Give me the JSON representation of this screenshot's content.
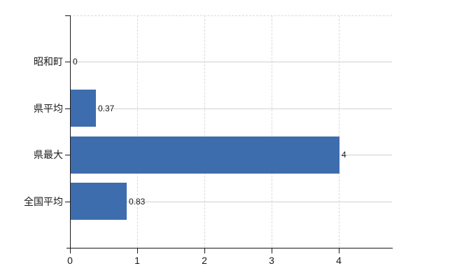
{
  "chart_data": {
    "type": "bar",
    "orientation": "horizontal",
    "title": "",
    "xlabel": "",
    "ylabel": "",
    "categories": [
      "昭和町",
      "県平均",
      "県最大",
      "全国平均"
    ],
    "values": [
      0,
      0.37,
      4,
      0.83
    ],
    "data_labels": [
      "0",
      "0.37",
      "4",
      "0.83"
    ],
    "xticks": [
      "0",
      "1",
      "2",
      "3",
      "4"
    ],
    "xlim": [
      0,
      4.79
    ],
    "grid": "on",
    "legend": "none",
    "colors": {
      "bar": "#3e6dae",
      "axis": "#1a1a1a",
      "vertical_grid": "#d9d9d9",
      "horizontal_grid": "#ccd5cc",
      "text": "#1a1a1a"
    }
  }
}
